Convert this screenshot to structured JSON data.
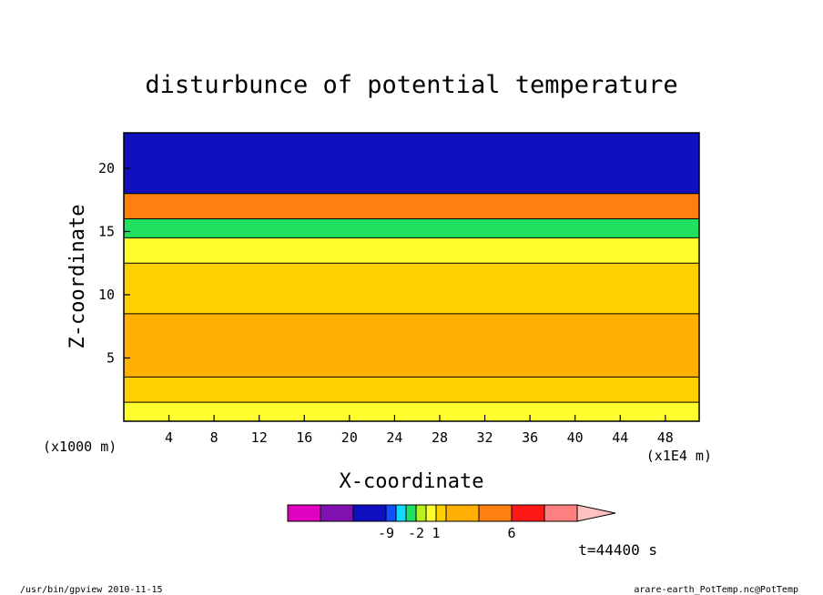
{
  "chart_data": {
    "type": "heatmap",
    "title": "disturbunce of potential temperature",
    "xlabel": "X-coordinate",
    "ylabel": "Z-coordinate",
    "x_unit_left": "(x1000 m)",
    "x_unit_right": "(x1E4 m)",
    "x_ticks": [
      4,
      8,
      12,
      16,
      20,
      24,
      28,
      32,
      36,
      40,
      44,
      48
    ],
    "y_ticks": [
      5,
      10,
      15,
      20
    ],
    "xlim": [
      0,
      51
    ],
    "ylim": [
      0,
      22.8
    ],
    "time_label": "t=44400 s",
    "colorbar": {
      "colors": [
        "#e000c0",
        "#8010b0",
        "#1010c0",
        "#1050ff",
        "#10d8ff",
        "#20e060",
        "#b8f020",
        "#ffff30",
        "#ffd000",
        "#ffb000",
        "#ff8010",
        "#ff1818",
        "#ff8080",
        "#ffc0c0"
      ],
      "tick_labels": [
        "-9",
        "-2",
        "1",
        "6"
      ],
      "tick_after_box": [
        2,
        5,
        7,
        10
      ]
    },
    "field_levels_bottom_to_top": [
      {
        "z_max": 1.5,
        "color": "#ffff30"
      },
      {
        "z_max": 3.5,
        "color": "#ffd000"
      },
      {
        "z_max": 8.5,
        "color": "#ffb000"
      },
      {
        "z_max": 12.5,
        "color": "#ffd000"
      },
      {
        "z_max": 14.5,
        "color": "#ffff30"
      },
      {
        "z_max": 16,
        "color": "#20e060"
      },
      {
        "z_max": 18,
        "color": "#ff8010"
      },
      {
        "z_max": 22.8,
        "color": "#1010c0"
      }
    ]
  },
  "footer": {
    "left": "/usr/bin/gpview   2010-11-15",
    "right": "arare-earth_PotTemp.nc@PotTemp"
  }
}
